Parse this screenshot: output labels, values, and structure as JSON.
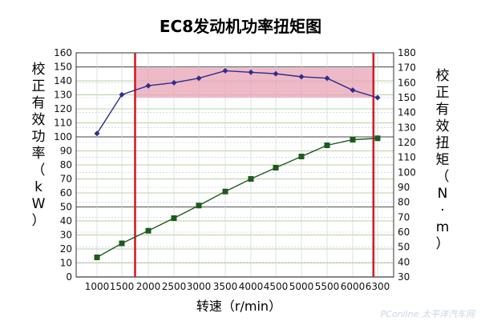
{
  "chart_data": {
    "type": "line",
    "title": "EC8发动机功率扭矩图",
    "xlabel": "转速（r/min）",
    "ylabel_left": "校正有效功率（kW）",
    "ylabel_right": "校正有效扭矩（N·m）",
    "x_categories": [
      "1000",
      "1500",
      "2000",
      "2500",
      "3000",
      "3500",
      "4000",
      "4500",
      "5000",
      "5500",
      "6000",
      "6300"
    ],
    "ylim_left": [
      0,
      160
    ],
    "ylim_right": [
      30,
      180
    ],
    "left_ticks": [
      "0",
      "10",
      "20",
      "30",
      "40",
      "50",
      "60",
      "70",
      "80",
      "90",
      "100",
      "110",
      "120",
      "130",
      "140",
      "150",
      "160"
    ],
    "right_ticks": [
      "30",
      "40",
      "50",
      "60",
      "70",
      "80",
      "90",
      "100",
      "110",
      "120",
      "130",
      "140",
      "150",
      "160",
      "170",
      "180"
    ],
    "series": [
      {
        "axis": "right",
        "color": "#2e2e8c",
        "marker": "diamond",
        "x": [
          1000,
          1500,
          2000,
          2500,
          3000,
          3500,
          4000,
          4500,
          5000,
          5500,
          6000,
          6300
        ],
        "y": [
          126,
          152,
          158,
          160,
          163,
          168,
          167,
          166,
          164,
          163,
          155,
          150
        ]
      },
      {
        "axis": "left",
        "color": "#1e5a1e",
        "marker": "square",
        "x": [
          1000,
          1500,
          2000,
          2500,
          3000,
          3500,
          4000,
          4500,
          5000,
          5500,
          6000,
          6300
        ],
        "y": [
          14,
          24,
          33,
          42,
          51,
          61,
          70,
          78,
          86,
          94,
          98,
          99
        ]
      }
    ],
    "shaded_band_right_axis": [
      150,
      170
    ],
    "shaded_band_rpm": [
      1750,
      6250
    ],
    "vertical_markers_rpm": [
      1750,
      6250
    ],
    "colors": {
      "band": "#e8a3b5",
      "marker_lines": "#d41c24",
      "grid_major": "#6b6b6b",
      "grid_minor": "#bcd0a0"
    },
    "grid": true,
    "watermark": "PConline 太平洋汽车网"
  }
}
